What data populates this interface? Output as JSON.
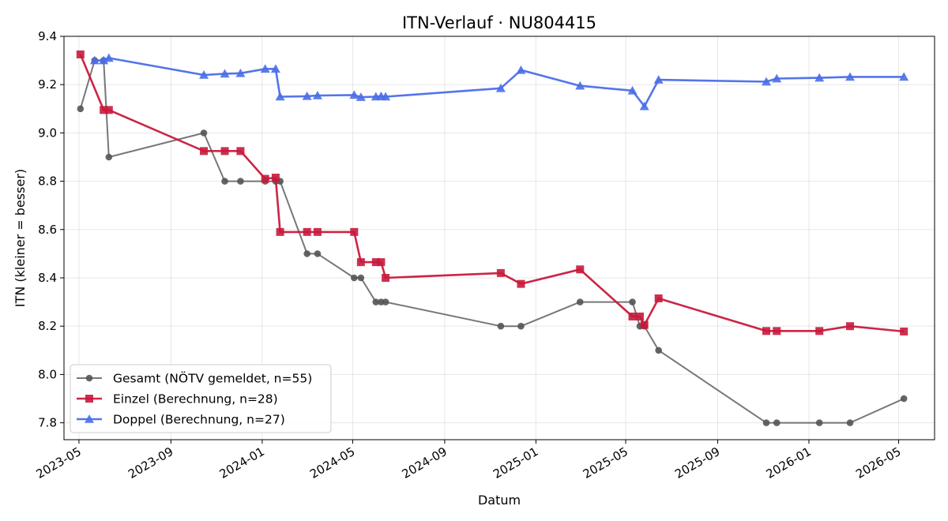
{
  "chart_data": {
    "type": "line",
    "title": "ITN-Verlauf · NU804415",
    "xlabel": "Datum",
    "ylabel": "ITN  (kleiner = besser)",
    "x_type": "date",
    "xlim": [
      "2023-04-11",
      "2026-06-18"
    ],
    "ylim": [
      7.73,
      9.4
    ],
    "x_ticks": [
      "2023-05-01",
      "2023-09-01",
      "2024-01-01",
      "2024-05-01",
      "2024-09-01",
      "2025-01-01",
      "2025-05-01",
      "2025-09-01",
      "2026-01-01",
      "2026-05-01"
    ],
    "x_tick_labels": [
      "2023-05",
      "2023-09",
      "2024-01",
      "2024-05",
      "2024-09",
      "2025-01",
      "2025-05",
      "2025-09",
      "2026-01",
      "2026-05"
    ],
    "y_ticks": [
      7.8,
      8.0,
      8.2,
      8.4,
      8.6,
      8.8,
      9.0,
      9.2,
      9.4
    ],
    "y_tick_labels": [
      "7.8",
      "8.0",
      "8.2",
      "8.4",
      "8.6",
      "8.8",
      "9.0",
      "9.2",
      "9.4"
    ],
    "grid": true,
    "legend_position": "lower-left",
    "series": [
      {
        "name": "Gesamt (NÖTV gemeldet, n=55)",
        "color": "#555555",
        "marker": "circle",
        "points": [
          {
            "x": "2023-05-03",
            "y": 9.1
          },
          {
            "x": "2023-05-22",
            "y": 9.3
          },
          {
            "x": "2023-06-03",
            "y": 9.3
          },
          {
            "x": "2023-06-10",
            "y": 8.9
          },
          {
            "x": "2023-10-15",
            "y": 9.0
          },
          {
            "x": "2023-11-12",
            "y": 8.8
          },
          {
            "x": "2023-12-03",
            "y": 8.8
          },
          {
            "x": "2024-01-05",
            "y": 8.8
          },
          {
            "x": "2024-01-19",
            "y": 8.8
          },
          {
            "x": "2024-01-25",
            "y": 8.8
          },
          {
            "x": "2024-03-01",
            "y": 8.5
          },
          {
            "x": "2024-03-15",
            "y": 8.5
          },
          {
            "x": "2024-05-03",
            "y": 8.4
          },
          {
            "x": "2024-05-12",
            "y": 8.4
          },
          {
            "x": "2024-06-01",
            "y": 8.3
          },
          {
            "x": "2024-06-08",
            "y": 8.3
          },
          {
            "x": "2024-06-14",
            "y": 8.3
          },
          {
            "x": "2024-11-15",
            "y": 8.2
          },
          {
            "x": "2024-12-12",
            "y": 8.2
          },
          {
            "x": "2025-03-01",
            "y": 8.3
          },
          {
            "x": "2025-05-10",
            "y": 8.3
          },
          {
            "x": "2025-05-20",
            "y": 8.2
          },
          {
            "x": "2025-05-26",
            "y": 8.2
          },
          {
            "x": "2025-06-14",
            "y": 8.1
          },
          {
            "x": "2025-11-05",
            "y": 7.8
          },
          {
            "x": "2025-11-19",
            "y": 7.8
          },
          {
            "x": "2026-01-15",
            "y": 7.8
          },
          {
            "x": "2026-02-25",
            "y": 7.8
          },
          {
            "x": "2026-05-08",
            "y": 7.9
          }
        ]
      },
      {
        "name": "Einzel (Berechnung, n=28)",
        "color": "#c8193c",
        "marker": "square",
        "points": [
          {
            "x": "2023-05-03",
            "y": 9.325
          },
          {
            "x": "2023-06-03",
            "y": 9.095
          },
          {
            "x": "2023-06-10",
            "y": 9.095
          },
          {
            "x": "2023-10-15",
            "y": 8.925
          },
          {
            "x": "2023-11-12",
            "y": 8.925
          },
          {
            "x": "2023-12-03",
            "y": 8.925
          },
          {
            "x": "2024-01-05",
            "y": 8.81
          },
          {
            "x": "2024-01-19",
            "y": 8.815
          },
          {
            "x": "2024-01-25",
            "y": 8.59
          },
          {
            "x": "2024-03-01",
            "y": 8.59
          },
          {
            "x": "2024-03-15",
            "y": 8.59
          },
          {
            "x": "2024-05-03",
            "y": 8.59
          },
          {
            "x": "2024-05-12",
            "y": 8.465
          },
          {
            "x": "2024-06-01",
            "y": 8.465
          },
          {
            "x": "2024-06-08",
            "y": 8.465
          },
          {
            "x": "2024-06-14",
            "y": 8.4
          },
          {
            "x": "2024-11-15",
            "y": 8.42
          },
          {
            "x": "2024-12-12",
            "y": 8.375
          },
          {
            "x": "2025-03-01",
            "y": 8.435
          },
          {
            "x": "2025-05-10",
            "y": 8.24
          },
          {
            "x": "2025-05-20",
            "y": 8.24
          },
          {
            "x": "2025-05-26",
            "y": 8.205
          },
          {
            "x": "2025-06-14",
            "y": 8.315
          },
          {
            "x": "2025-11-05",
            "y": 8.18
          },
          {
            "x": "2025-11-19",
            "y": 8.18
          },
          {
            "x": "2026-01-15",
            "y": 8.18
          },
          {
            "x": "2026-02-25",
            "y": 8.2
          },
          {
            "x": "2026-05-08",
            "y": 8.178
          }
        ]
      },
      {
        "name": "Doppel (Berechnung, n=27)",
        "color": "#4a6ee8",
        "marker": "triangle",
        "points": [
          {
            "x": "2023-05-22",
            "y": 9.3
          },
          {
            "x": "2023-06-03",
            "y": 9.3
          },
          {
            "x": "2023-06-10",
            "y": 9.31
          },
          {
            "x": "2023-10-15",
            "y": 9.24
          },
          {
            "x": "2023-11-12",
            "y": 9.245
          },
          {
            "x": "2023-12-03",
            "y": 9.247
          },
          {
            "x": "2024-01-05",
            "y": 9.265
          },
          {
            "x": "2024-01-19",
            "y": 9.265
          },
          {
            "x": "2024-01-25",
            "y": 9.15
          },
          {
            "x": "2024-03-01",
            "y": 9.152
          },
          {
            "x": "2024-03-15",
            "y": 9.155
          },
          {
            "x": "2024-05-03",
            "y": 9.157
          },
          {
            "x": "2024-05-12",
            "y": 9.148
          },
          {
            "x": "2024-06-01",
            "y": 9.15
          },
          {
            "x": "2024-06-08",
            "y": 9.152
          },
          {
            "x": "2024-06-14",
            "y": 9.15
          },
          {
            "x": "2024-11-15",
            "y": 9.185
          },
          {
            "x": "2024-12-12",
            "y": 9.26
          },
          {
            "x": "2025-03-01",
            "y": 9.195
          },
          {
            "x": "2025-05-10",
            "y": 9.175
          },
          {
            "x": "2025-05-26",
            "y": 9.11
          },
          {
            "x": "2025-06-14",
            "y": 9.22
          },
          {
            "x": "2025-11-05",
            "y": 9.212
          },
          {
            "x": "2025-11-19",
            "y": 9.225
          },
          {
            "x": "2026-01-15",
            "y": 9.228
          },
          {
            "x": "2026-02-25",
            "y": 9.232
          },
          {
            "x": "2026-05-08",
            "y": 9.232
          }
        ]
      }
    ]
  }
}
